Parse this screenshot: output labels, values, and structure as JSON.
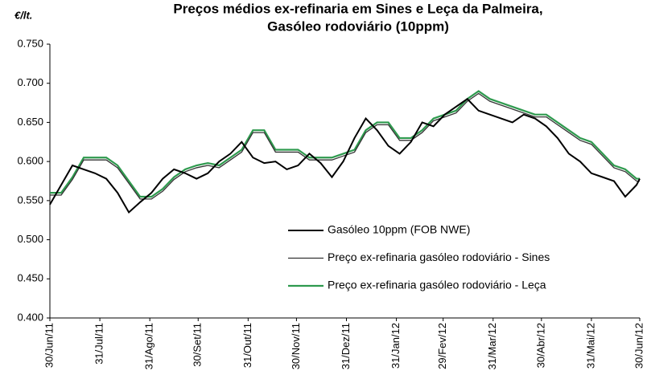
{
  "chart_data": {
    "type": "line",
    "title": "Preços médios ex-refinaria em Sines e Leça da Palmeira,",
    "subtitle": "Gasóleo rodoviário (10ppm)",
    "y_label": "€/lt.",
    "x": [
      0,
      7,
      14,
      21,
      28,
      35,
      42,
      49,
      56,
      63,
      70,
      77,
      84,
      91,
      98,
      105,
      112,
      119,
      126,
      133,
      140,
      147,
      154,
      161,
      168,
      175,
      182,
      189,
      196,
      203,
      210,
      217,
      224,
      231,
      238,
      245,
      252,
      259,
      266,
      273,
      280,
      287,
      294,
      301,
      308,
      315,
      322,
      329,
      336,
      343,
      350,
      357,
      364,
      366
    ],
    "xlim": [
      0,
      366
    ],
    "xticks": [
      {
        "value": 0,
        "label": "30/Jun/11"
      },
      {
        "value": 31,
        "label": "31/Jul/11"
      },
      {
        "value": 62,
        "label": "31/Ago/11"
      },
      {
        "value": 92,
        "label": "30/Set/11"
      },
      {
        "value": 123,
        "label": "31/Out/11"
      },
      {
        "value": 153,
        "label": "30/Nov/11"
      },
      {
        "value": 184,
        "label": "31/Dez/11"
      },
      {
        "value": 215,
        "label": "31/Jan/12"
      },
      {
        "value": 244,
        "label": "29/Fev/12"
      },
      {
        "value": 275,
        "label": "31/Mar/12"
      },
      {
        "value": 305,
        "label": "30/Abr/12"
      },
      {
        "value": 336,
        "label": "31/Mai/12"
      },
      {
        "value": 366,
        "label": "30/Jun/12"
      }
    ],
    "ylim": [
      0.4,
      0.75
    ],
    "yticks": [
      {
        "value": 0.4,
        "label": "0.400"
      },
      {
        "value": 0.45,
        "label": "0.450"
      },
      {
        "value": 0.5,
        "label": "0.500"
      },
      {
        "value": 0.55,
        "label": "0.550"
      },
      {
        "value": 0.6,
        "label": "0.600"
      },
      {
        "value": 0.65,
        "label": "0.650"
      },
      {
        "value": 0.7,
        "label": "0.700"
      },
      {
        "value": 0.75,
        "label": "0.750"
      }
    ],
    "series": [
      {
        "name": "Gasóleo 10ppm (FOB NWE)",
        "color": "#000000",
        "width": 2,
        "values": [
          0.545,
          0.57,
          0.595,
          0.59,
          0.585,
          0.578,
          0.56,
          0.535,
          0.548,
          0.56,
          0.578,
          0.59,
          0.585,
          0.578,
          0.585,
          0.6,
          0.61,
          0.625,
          0.605,
          0.598,
          0.6,
          0.59,
          0.595,
          0.61,
          0.598,
          0.58,
          0.6,
          0.63,
          0.655,
          0.64,
          0.62,
          0.61,
          0.625,
          0.65,
          0.645,
          0.66,
          0.67,
          0.68,
          0.665,
          0.66,
          0.655,
          0.65,
          0.66,
          0.655,
          0.645,
          0.63,
          0.61,
          0.6,
          0.585,
          0.58,
          0.575,
          0.555,
          0.57,
          0.578
        ]
      },
      {
        "name": "Preço ex-refinaria gasóleo rodoviário - Sines",
        "color": "#333333",
        "width": 1.3,
        "values": [
          0.557,
          0.557,
          0.577,
          0.602,
          0.602,
          0.602,
          0.592,
          0.572,
          0.552,
          0.552,
          0.562,
          0.577,
          0.587,
          0.592,
          0.595,
          0.592,
          0.602,
          0.612,
          0.637,
          0.637,
          0.612,
          0.612,
          0.612,
          0.602,
          0.602,
          0.602,
          0.607,
          0.612,
          0.637,
          0.647,
          0.647,
          0.627,
          0.627,
          0.637,
          0.652,
          0.657,
          0.662,
          0.677,
          0.687,
          0.677,
          0.672,
          0.667,
          0.662,
          0.657,
          0.657,
          0.647,
          0.637,
          0.627,
          0.622,
          0.607,
          0.592,
          0.587,
          0.575,
          0.575
        ]
      },
      {
        "name": "Preço ex-refinaria gasóleo rodoviário - Leça",
        "color": "#2e9a4e",
        "width": 2.2,
        "values": [
          0.56,
          0.56,
          0.58,
          0.605,
          0.605,
          0.605,
          0.595,
          0.575,
          0.555,
          0.555,
          0.565,
          0.58,
          0.59,
          0.595,
          0.598,
          0.595,
          0.605,
          0.615,
          0.64,
          0.64,
          0.615,
          0.615,
          0.615,
          0.605,
          0.605,
          0.605,
          0.61,
          0.615,
          0.64,
          0.65,
          0.65,
          0.63,
          0.63,
          0.64,
          0.655,
          0.66,
          0.665,
          0.68,
          0.69,
          0.68,
          0.675,
          0.67,
          0.665,
          0.66,
          0.66,
          0.65,
          0.64,
          0.63,
          0.625,
          0.61,
          0.595,
          0.59,
          0.578,
          0.578
        ]
      }
    ]
  }
}
